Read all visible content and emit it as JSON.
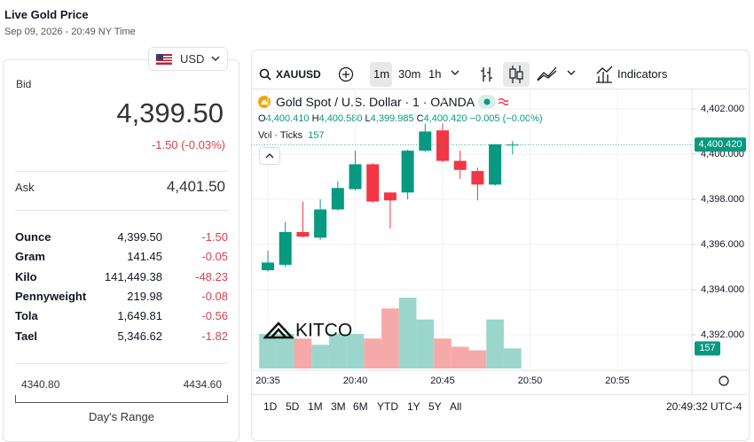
{
  "header": {
    "title": "Live Gold Price",
    "subtitle": "Sep 09, 2026 - 20:49 NY Time"
  },
  "quote": {
    "currency": "USD",
    "bid_label": "Bid",
    "bid": "4,399.50",
    "change": "-1.50 (-0.03%)",
    "ask_label": "Ask",
    "ask": "4,401.50"
  },
  "units": {
    "rows": [
      [
        "Ounce",
        "4,399.50",
        "-1.50"
      ],
      [
        "Gram",
        "141.45",
        "-0.05"
      ],
      [
        "Kilo",
        "141,449.38",
        "-48.23"
      ],
      [
        "Pennyweight",
        "219.98",
        "-0.08"
      ],
      [
        "Tola",
        "1,649.81",
        "-0.56"
      ],
      [
        "Tael",
        "5,346.62",
        "-1.82"
      ]
    ]
  },
  "range": {
    "low": "4340.80",
    "high": "4434.60",
    "label": "Day's Range"
  },
  "toolbar": {
    "symbol": "XAUUSD",
    "intervals": [
      "1m",
      "30m",
      "1h"
    ],
    "indicators": "Indicators"
  },
  "legend": {
    "name": "Gold Spot / U.S. Dollar · 1 · OANDA",
    "ohlc_keys": [
      "O",
      "H",
      "L",
      "C"
    ],
    "change": "−0.005 (−0.00%)",
    "volume_label": "Vol · Ticks"
  },
  "logo": "KITCO",
  "chart_data": {
    "type": "candlestick",
    "x": [
      "20:35",
      "20:36",
      "20:37",
      "20:38",
      "20:39",
      "20:40",
      "20:41",
      "20:42",
      "20:43",
      "20:44",
      "20:45",
      "20:46",
      "20:47",
      "20:48",
      "20:49"
    ],
    "open": [
      4394.86,
      4395.1,
      4396.55,
      4396.3,
      4397.55,
      4398.45,
      4399.55,
      4398.3,
      4398.3,
      4400.15,
      4401.05,
      4399.7,
      4399.25,
      4398.65,
      4400.41
    ],
    "high": [
      4395.73,
      4397.0,
      4397.9,
      4398.0,
      4398.8,
      4400.15,
      4399.6,
      4398.3,
      4400.2,
      4401.35,
      4401.35,
      4400.15,
      4399.4,
      4400.45,
      4400.58
    ],
    "low": [
      4394.8,
      4395.0,
      4396.3,
      4396.2,
      4397.5,
      4398.4,
      4397.85,
      4396.7,
      4398.0,
      4400.1,
      4399.65,
      4398.9,
      4397.95,
      4398.6,
      4399.985
    ],
    "close": [
      4395.2,
      4396.55,
      4396.35,
      4397.55,
      4398.5,
      4399.55,
      4397.9,
      4397.95,
      4400.15,
      4401.0,
      4399.7,
      4399.3,
      4398.65,
      4400.43,
      4400.42
    ],
    "volume": [
      270,
      270,
      234,
      185,
      270,
      270,
      234,
      469,
      554,
      383,
      234,
      170,
      142,
      383,
      157
    ],
    "value_labels": {
      "open": "4,400.410",
      "high": "4,400.580",
      "low": "4,399.985",
      "close": "4,400.420"
    },
    "ylim": [
      4390.51,
      4402.9
    ],
    "yticks": [
      {
        "value": 4392,
        "label": "4,392.000"
      },
      {
        "value": 4394,
        "label": "4,394.000"
      },
      {
        "value": 4396,
        "label": "4,396.000"
      },
      {
        "value": 4398,
        "label": "4,398.000"
      },
      {
        "value": 4400,
        "label": "4,400.000"
      },
      {
        "value": 4402,
        "label": "4,402.000"
      }
    ],
    "xticks": [
      "20:35",
      "20:40",
      "20:45",
      "20:50",
      "20:55"
    ],
    "up_color": "#089981",
    "down_color": "#f23645",
    "up_volume_color": "#9ad6cb",
    "down_volume_color": "#f6a9a9",
    "grid": true
  },
  "footer": {
    "ranges": [
      "1D",
      "5D",
      "1M",
      "3M",
      "6M",
      "YTD",
      "1Y",
      "5Y",
      "All"
    ],
    "time": "20:49:32 UTC-4"
  }
}
